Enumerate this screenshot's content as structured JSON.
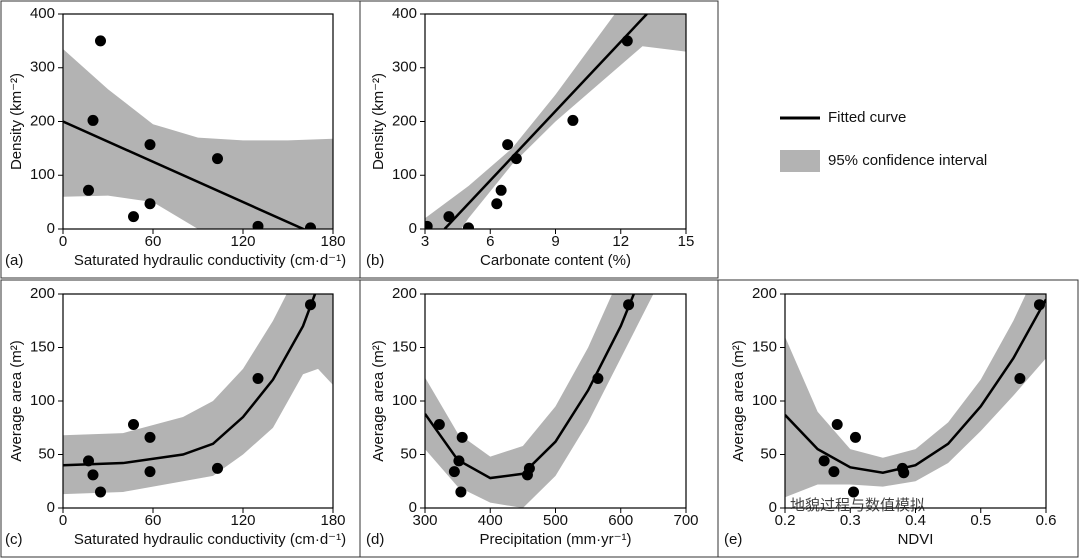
{
  "chart_data": [
    {
      "type": "scatter",
      "panel_label": "(a)",
      "xlabel": "Saturated hydraulic conductivity (cm·d⁻¹)",
      "ylabel": "Density (km⁻²)",
      "xlim": [
        0,
        180
      ],
      "xticks": [
        0,
        60,
        120,
        180
      ],
      "ylim": [
        0,
        400
      ],
      "yticks": [
        0,
        100,
        200,
        300,
        400
      ],
      "point_color": "#000000",
      "points": {
        "x": [
          17,
          20,
          25,
          47,
          58,
          58,
          103,
          130,
          165
        ],
        "y": [
          72,
          202,
          350,
          23,
          157,
          47,
          131,
          5,
          2
        ]
      },
      "fit": {
        "x": [
          0,
          165
        ],
        "y": [
          200,
          -6
        ]
      },
      "band": {
        "x": [
          0,
          30,
          60,
          90,
          120,
          150,
          180
        ],
        "upper": [
          335,
          260,
          195,
          170,
          165,
          165,
          168
        ],
        "lower": [
          60,
          62,
          50,
          0,
          -60,
          -140,
          -200
        ]
      }
    },
    {
      "type": "scatter",
      "panel_label": "(b)",
      "xlabel": "Carbonate content (%)",
      "ylabel": "Density (km⁻²)",
      "xlim": [
        3,
        15
      ],
      "xticks": [
        3,
        6,
        9,
        12,
        15
      ],
      "ylim": [
        0,
        400
      ],
      "yticks": [
        0,
        100,
        200,
        300,
        400
      ],
      "point_color": "#000000",
      "points": {
        "x": [
          3.1,
          4.1,
          5,
          6.3,
          6.5,
          6.8,
          7.2,
          9.8,
          12.3
        ],
        "y": [
          5,
          23,
          2,
          47,
          72,
          157,
          131,
          202,
          350
        ]
      },
      "fit": {
        "x": [
          3.9,
          13.2
        ],
        "y": [
          0,
          400
        ]
      },
      "band": {
        "x": [
          3,
          5,
          7,
          9,
          11,
          13,
          15
        ],
        "upper": [
          20,
          80,
          150,
          250,
          360,
          470,
          600
        ],
        "lower": [
          -100,
          20,
          120,
          200,
          270,
          340,
          330
        ]
      }
    },
    {
      "type": "scatter",
      "panel_label": "(c)",
      "xlabel": "Saturated hydraulic conductivity (cm·d⁻¹)",
      "ylabel": "Average area (m²)",
      "xlim": [
        0,
        180
      ],
      "xticks": [
        0,
        60,
        120,
        180
      ],
      "ylim": [
        0,
        200
      ],
      "yticks": [
        0,
        50,
        100,
        150,
        200
      ],
      "point_color": "#000000",
      "points": {
        "x": [
          17,
          20,
          25,
          47,
          58,
          58,
          103,
          130,
          165
        ],
        "y": [
          44,
          31,
          15,
          78,
          66,
          34,
          37,
          121,
          190
        ]
      },
      "fit": {
        "x": [
          0,
          40,
          80,
          100,
          120,
          140,
          160,
          168
        ],
        "y": [
          40,
          42,
          50,
          60,
          85,
          120,
          170,
          200
        ]
      },
      "band": {
        "x": [
          0,
          40,
          80,
          100,
          120,
          140,
          160,
          170,
          180
        ],
        "upper": [
          68,
          70,
          85,
          100,
          130,
          175,
          230,
          250,
          260
        ],
        "lower": [
          13,
          15,
          25,
          30,
          50,
          75,
          125,
          130,
          115
        ]
      }
    },
    {
      "type": "scatter",
      "panel_label": "(d)",
      "xlabel": "Precipitation (mm·yr⁻¹)",
      "ylabel": "Average area (m²)",
      "xlim": [
        300,
        700
      ],
      "xticks": [
        300,
        400,
        500,
        600,
        700
      ],
      "ylim": [
        0,
        200
      ],
      "yticks": [
        0,
        50,
        100,
        150,
        200
      ],
      "point_color": "#000000",
      "points": {
        "x": [
          322,
          345,
          352,
          355,
          357,
          457,
          460,
          565,
          612
        ],
        "y": [
          78,
          34,
          44,
          15,
          66,
          31,
          37,
          121,
          190
        ]
      },
      "fit": {
        "x": [
          300,
          350,
          400,
          450,
          500,
          550,
          600,
          620
        ],
        "y": [
          88,
          45,
          28,
          32,
          62,
          110,
          170,
          200
        ]
      },
      "band": {
        "x": [
          300,
          350,
          400,
          450,
          500,
          550,
          600,
          650
        ],
        "upper": [
          122,
          70,
          48,
          58,
          95,
          150,
          218,
          300
        ],
        "lower": [
          55,
          20,
          5,
          0,
          30,
          80,
          140,
          200
        ]
      }
    },
    {
      "type": "scatter",
      "panel_label": "(e)",
      "xlabel": "NDVI",
      "ylabel": "Average area (m²)",
      "xlim": [
        0.2,
        0.6
      ],
      "xticks": [
        0.2,
        0.3,
        0.4,
        0.5,
        0.6
      ],
      "ylim": [
        0,
        200
      ],
      "yticks": [
        0,
        50,
        100,
        150,
        200
      ],
      "point_color": "#000000",
      "points": {
        "x": [
          0.26,
          0.275,
          0.28,
          0.305,
          0.308,
          0.38,
          0.382,
          0.56,
          0.59
        ],
        "y": [
          44,
          34,
          78,
          15,
          66,
          37,
          33,
          121,
          190
        ]
      },
      "fit": {
        "x": [
          0.2,
          0.25,
          0.3,
          0.35,
          0.4,
          0.45,
          0.5,
          0.55,
          0.6
        ],
        "y": [
          87,
          55,
          38,
          33,
          40,
          60,
          95,
          140,
          195
        ]
      },
      "band": {
        "x": [
          0.2,
          0.25,
          0.3,
          0.35,
          0.4,
          0.45,
          0.5,
          0.55,
          0.6
        ],
        "upper": [
          160,
          90,
          55,
          47,
          55,
          80,
          120,
          175,
          240
        ],
        "lower": [
          10,
          22,
          22,
          20,
          25,
          42,
          72,
          105,
          140
        ]
      }
    }
  ],
  "legend": {
    "items": [
      {
        "name": "Fitted curve",
        "color": "#000000"
      },
      {
        "name": "95% confidence interval",
        "color": "#b3b3b3"
      }
    ]
  },
  "watermark": "地貌过程与数值模拟"
}
